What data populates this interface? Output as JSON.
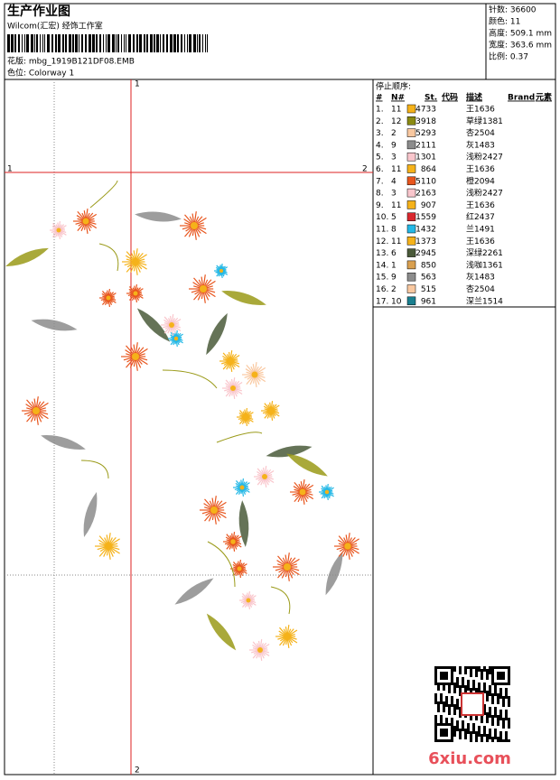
{
  "header": {
    "title": "生产作业图",
    "subtitle": "Wilcom(汇宏) 经饰工作室",
    "design": "花版: mbg_1919B121DF08.EMB",
    "colorway": "色位: Colorway 1"
  },
  "info": [
    "针数: 36600",
    "颜色: 11",
    "高度: 509.1 mm",
    "宽度: 363.6 mm",
    "比例: 0.37"
  ],
  "axes": {
    "top": "1",
    "left": "1",
    "right": "2",
    "bottom": "2"
  },
  "table": {
    "caption": "停止顺序:",
    "columns": [
      "#",
      "N#",
      "St.",
      "代码",
      "描述",
      "Brand",
      "元素"
    ],
    "rows": [
      [
        "1.",
        "11",
        "#f5b21a",
        4733,
        "王1636"
      ],
      [
        "2.",
        "12",
        "#8a8a12",
        3918,
        "草绿1381"
      ],
      [
        "3.",
        "2",
        "#f9c8a0",
        5293,
        "杏2504"
      ],
      [
        "4.",
        "9",
        "#8c8c8c",
        2111,
        "灰1483"
      ],
      [
        "5.",
        "3",
        "#f9c6cc",
        1301,
        "浅粉2427"
      ],
      [
        "6.",
        "11",
        "#f5b21a",
        864,
        "王1636"
      ],
      [
        "7.",
        "4",
        "#e8561e",
        5110,
        "橙2094"
      ],
      [
        "8.",
        "3",
        "#f9c6cc",
        2163,
        "浅粉2427"
      ],
      [
        "9.",
        "11",
        "#f5b21a",
        907,
        "王1636"
      ],
      [
        "10.",
        "5",
        "#d9282f",
        1559,
        "红2437"
      ],
      [
        "11.",
        "8",
        "#24b8e6",
        1432,
        "兰1491"
      ],
      [
        "12.",
        "11",
        "#f5b21a",
        1373,
        "王1636"
      ],
      [
        "13.",
        "6",
        "#4a5a3a",
        2945,
        "深绿2261"
      ],
      [
        "14.",
        "1",
        "#d9a050",
        850,
        "浅咖1361"
      ],
      [
        "15.",
        "9",
        "#8c8c8c",
        563,
        "灰1483"
      ],
      [
        "16.",
        "2",
        "#f9c8a0",
        515,
        "杏2504"
      ],
      [
        "17.",
        "10",
        "#1a7f8f",
        961,
        "深兰1514"
      ]
    ]
  },
  "watermark": "6xiu.com"
}
